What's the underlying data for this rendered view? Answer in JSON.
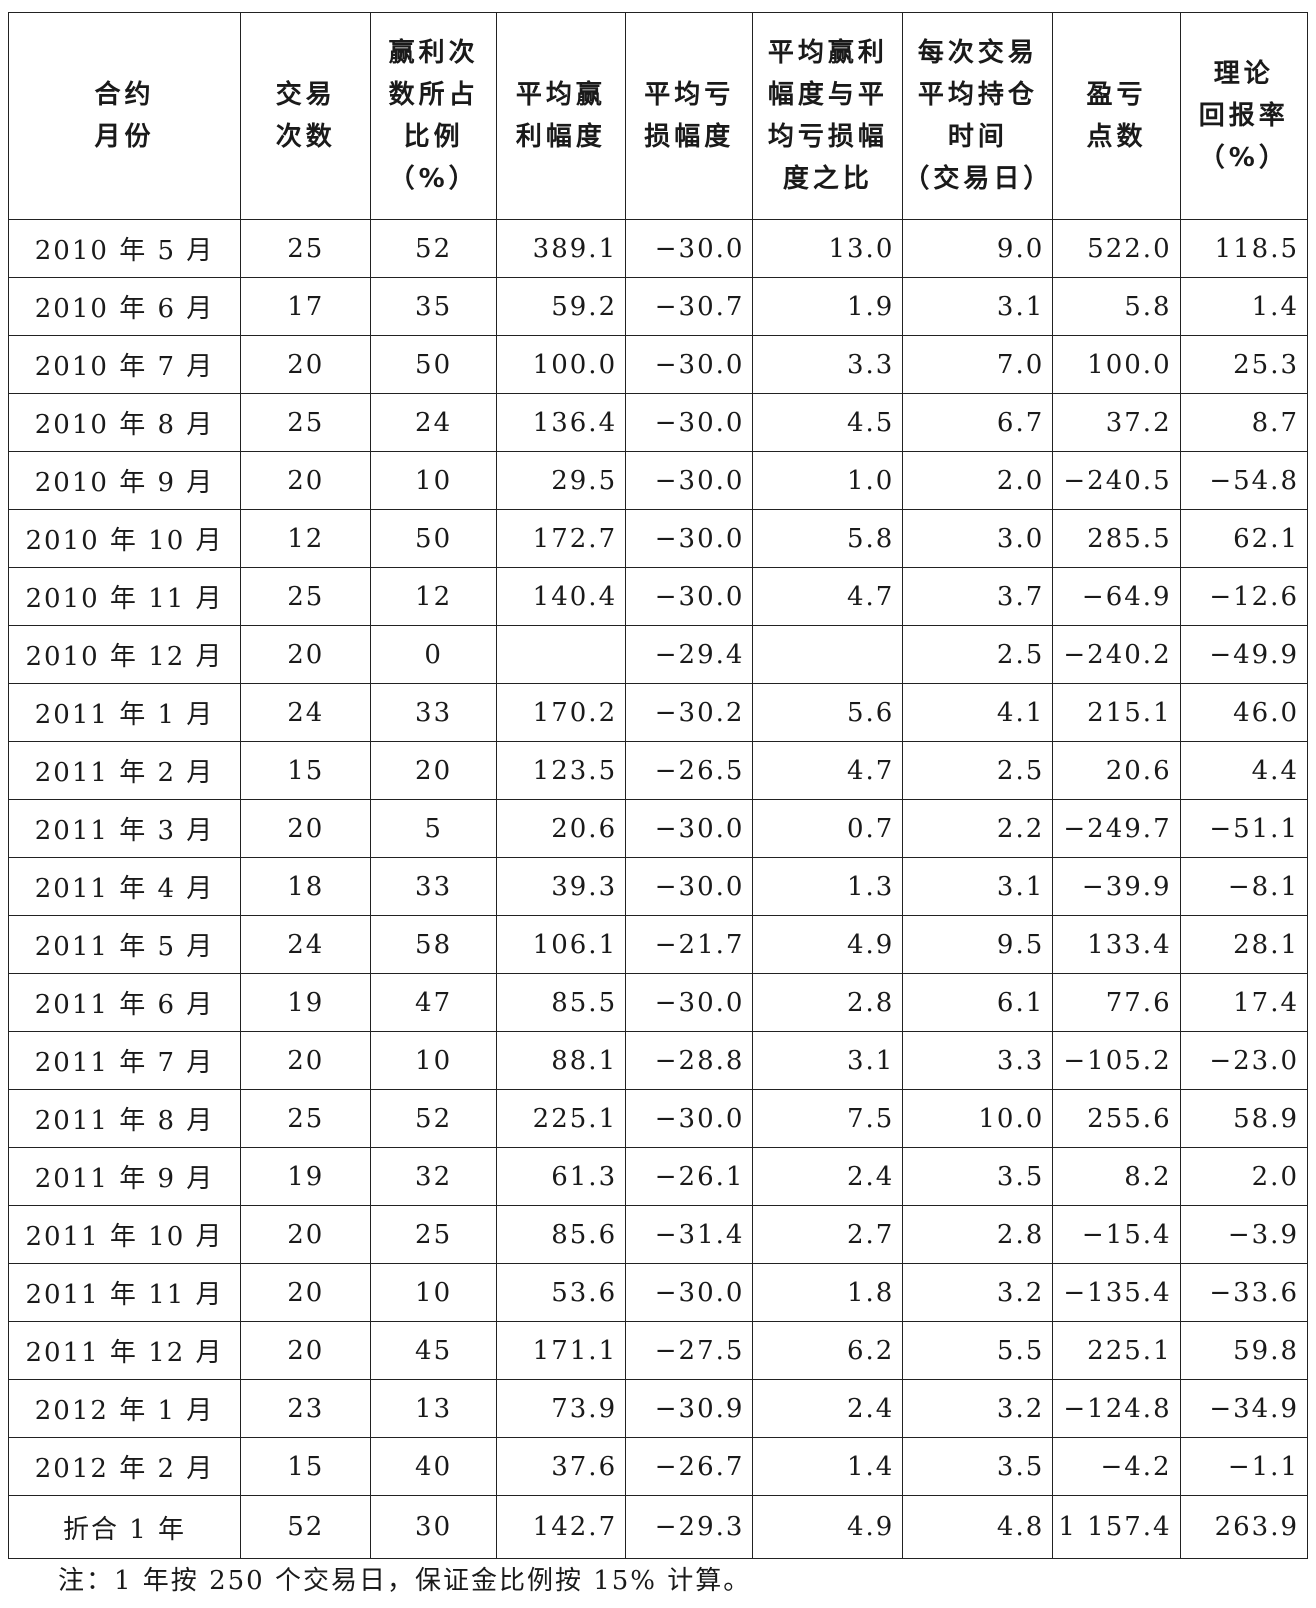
{
  "table": {
    "headers": [
      [
        "合约",
        "月份"
      ],
      [
        "交易",
        "次数"
      ],
      [
        "赢利次",
        "数所占",
        "比例",
        "（%）"
      ],
      [
        "平均赢",
        "利幅度"
      ],
      [
        "平均亏",
        "损幅度"
      ],
      [
        "平均赢利",
        "幅度与平",
        "均亏损幅",
        "度之比"
      ],
      [
        "每次交易",
        "平均持仓",
        "时间",
        "（交易日）"
      ],
      [
        "盈亏",
        "点数"
      ],
      [
        "理论",
        "回报率",
        "（%）"
      ]
    ],
    "rows": [
      [
        "2010 年 5 月",
        "25",
        "52",
        "389.1",
        "−30.0",
        "13.0",
        "9.0",
        "522.0",
        "118.5"
      ],
      [
        "2010 年 6 月",
        "17",
        "35",
        "59.2",
        "−30.7",
        "1.9",
        "3.1",
        "5.8",
        "1.4"
      ],
      [
        "2010 年 7 月",
        "20",
        "50",
        "100.0",
        "−30.0",
        "3.3",
        "7.0",
        "100.0",
        "25.3"
      ],
      [
        "2010 年 8 月",
        "25",
        "24",
        "136.4",
        "−30.0",
        "4.5",
        "6.7",
        "37.2",
        "8.7"
      ],
      [
        "2010 年 9 月",
        "20",
        "10",
        "29.5",
        "−30.0",
        "1.0",
        "2.0",
        "−240.5",
        "−54.8"
      ],
      [
        "2010 年 10 月",
        "12",
        "50",
        "172.7",
        "−30.0",
        "5.8",
        "3.0",
        "285.5",
        "62.1"
      ],
      [
        "2010 年 11 月",
        "25",
        "12",
        "140.4",
        "−30.0",
        "4.7",
        "3.7",
        "−64.9",
        "−12.6"
      ],
      [
        "2010 年 12 月",
        "20",
        "0",
        "",
        "−29.4",
        "",
        "2.5",
        "−240.2",
        "−49.9"
      ],
      [
        "2011 年 1 月",
        "24",
        "33",
        "170.2",
        "−30.2",
        "5.6",
        "4.1",
        "215.1",
        "46.0"
      ],
      [
        "2011 年 2 月",
        "15",
        "20",
        "123.5",
        "−26.5",
        "4.7",
        "2.5",
        "20.6",
        "4.4"
      ],
      [
        "2011 年 3 月",
        "20",
        "5",
        "20.6",
        "−30.0",
        "0.7",
        "2.2",
        "−249.7",
        "−51.1"
      ],
      [
        "2011 年 4 月",
        "18",
        "33",
        "39.3",
        "−30.0",
        "1.3",
        "3.1",
        "−39.9",
        "−8.1"
      ],
      [
        "2011 年 5 月",
        "24",
        "58",
        "106.1",
        "−21.7",
        "4.9",
        "9.5",
        "133.4",
        "28.1"
      ],
      [
        "2011 年 6 月",
        "19",
        "47",
        "85.5",
        "−30.0",
        "2.8",
        "6.1",
        "77.6",
        "17.4"
      ],
      [
        "2011 年 7 月",
        "20",
        "10",
        "88.1",
        "−28.8",
        "3.1",
        "3.3",
        "−105.2",
        "−23.0"
      ],
      [
        "2011 年 8 月",
        "25",
        "52",
        "225.1",
        "−30.0",
        "7.5",
        "10.0",
        "255.6",
        "58.9"
      ],
      [
        "2011 年 9 月",
        "19",
        "32",
        "61.3",
        "−26.1",
        "2.4",
        "3.5",
        "8.2",
        "2.0"
      ],
      [
        "2011 年 10 月",
        "20",
        "25",
        "85.6",
        "−31.4",
        "2.7",
        "2.8",
        "−15.4",
        "−3.9"
      ],
      [
        "2011 年 11 月",
        "20",
        "10",
        "53.6",
        "−30.0",
        "1.8",
        "3.2",
        "−135.4",
        "−33.6"
      ],
      [
        "2011 年 12 月",
        "20",
        "45",
        "171.1",
        "−27.5",
        "6.2",
        "5.5",
        "225.1",
        "59.8"
      ],
      [
        "2012 年 1 月",
        "23",
        "13",
        "73.9",
        "−30.9",
        "2.4",
        "3.2",
        "−124.8",
        "−34.9"
      ],
      [
        "2012 年 2 月",
        "15",
        "40",
        "37.6",
        "−26.7",
        "1.4",
        "3.5",
        "−4.2",
        "−1.1"
      ],
      [
        "折合 1 年",
        "52",
        "30",
        "142.7",
        "−29.3",
        "4.9",
        "4.8",
        "1 157.4",
        "263.9"
      ]
    ]
  },
  "note": "注：1 年按 250 个交易日，保证金比例按 15% 计算。"
}
